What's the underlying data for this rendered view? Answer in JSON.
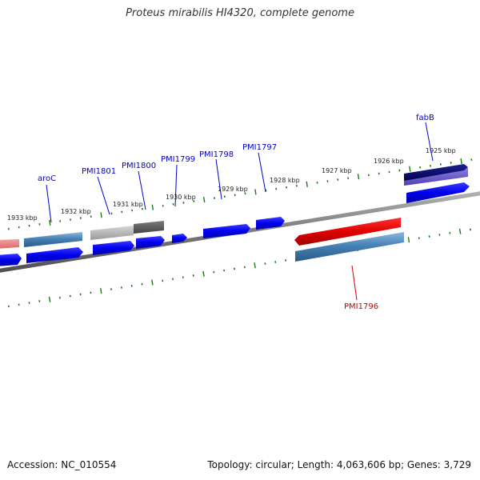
{
  "title": "Proteus mirabilis HI4320, complete genome",
  "footer": {
    "accession": "Accession: NC_010554",
    "summary": "Topology: circular; Length: 4,063,606 bp; Genes: 3,729"
  },
  "ruler_labels": [
    "1933 kbp",
    "1932 kbp",
    "1931 kbp",
    "1930 kbp",
    "1929 kbp",
    "1928 kbp",
    "1927 kbp",
    "1926 kbp",
    "1925 kbp"
  ],
  "gene_labels": [
    "aroC",
    "PMI1801",
    "PMI1800",
    "PMI1799",
    "PMI1798",
    "PMI1797",
    "fabB",
    "PMI1796"
  ],
  "colors": {
    "ruler": "#1a7a1a",
    "backbone": "#808080",
    "cds": "#0000ee",
    "gene_forward": "#4682b4",
    "gene_reverse": "#e00000",
    "misc_light": "#aaaaaa",
    "misc_dark": "#555555",
    "fabB_gene": "#6a5acd",
    "fabB_cds": "#000070",
    "label_blue": "#0000cc",
    "label_red": "#cc0000"
  }
}
